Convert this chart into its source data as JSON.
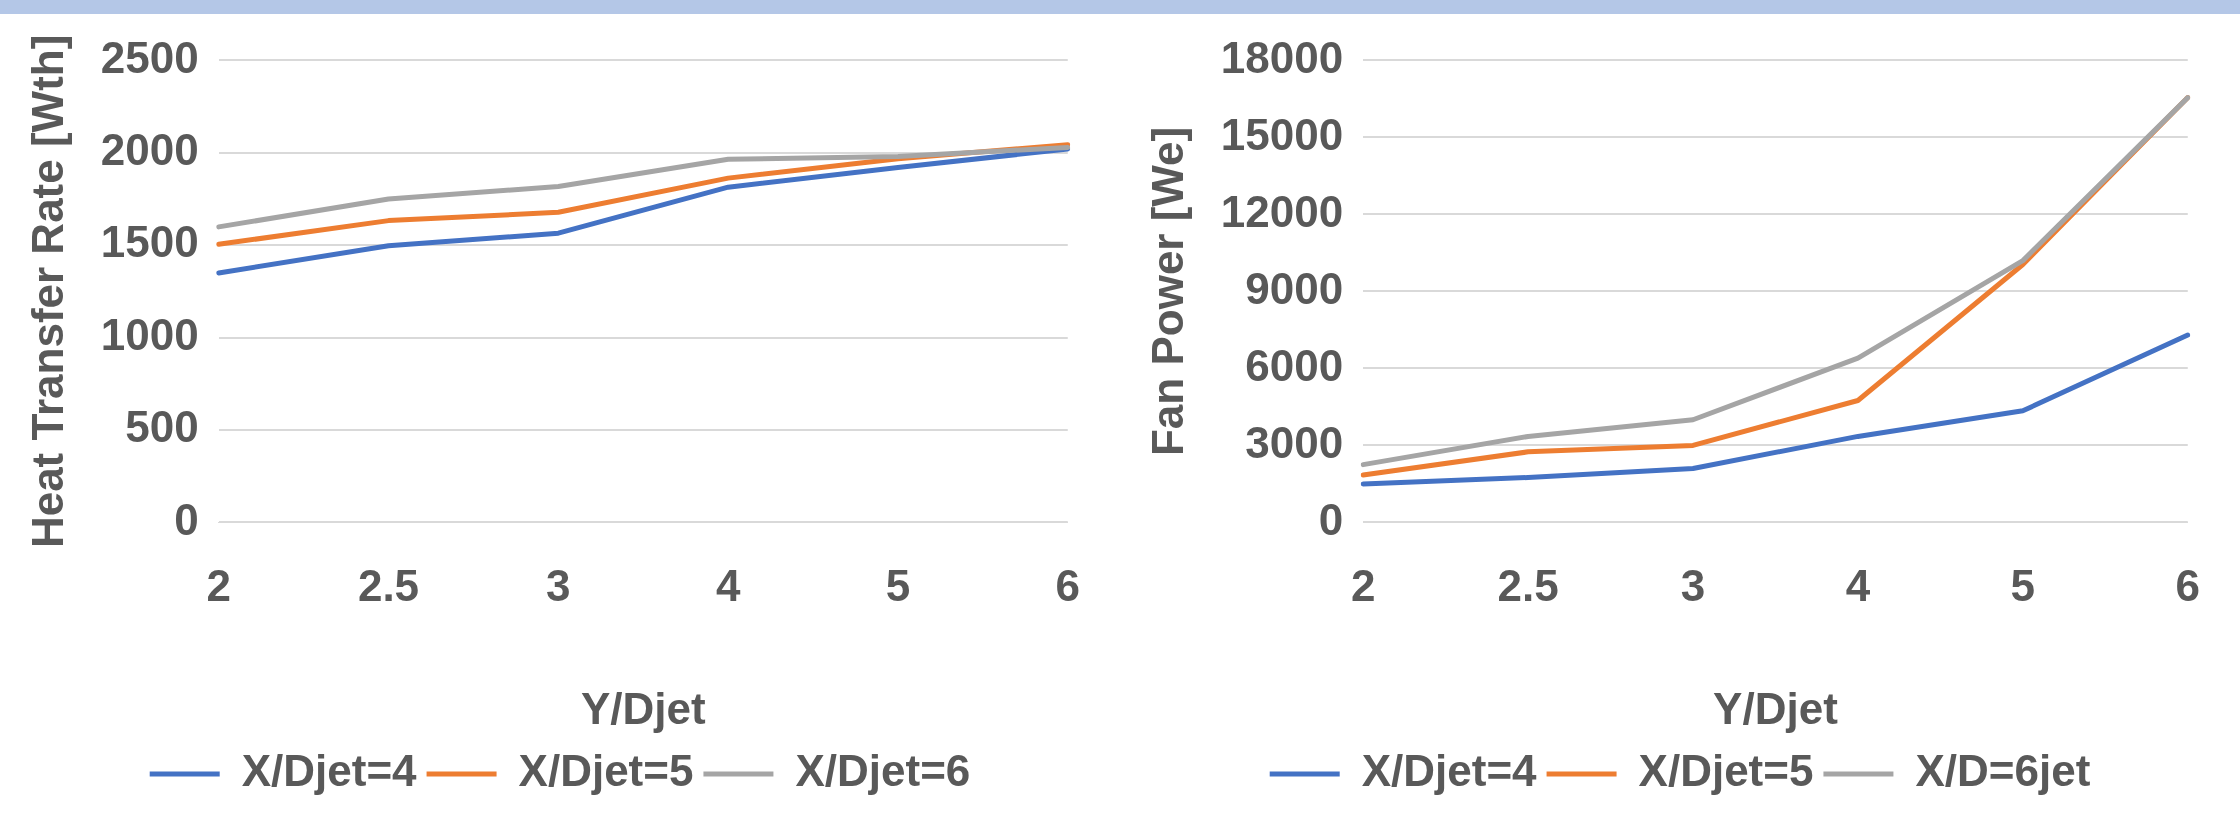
{
  "chart_data": [
    {
      "type": "line",
      "xlabel": "Y/Djet",
      "ylabel": "Heat Transfer Rate [Wth]",
      "categories": [
        "2",
        "2.5",
        "3",
        "4",
        "5",
        "6"
      ],
      "ylim": [
        0,
        2500
      ],
      "yticks": [
        0,
        500,
        1000,
        1500,
        2000,
        2500
      ],
      "grid": "y",
      "legend": "bottom",
      "marker": "none",
      "line_style": "solid",
      "series": [
        {
          "name": "X/Djet=4",
          "color": "#4472c4",
          "values": [
            1350,
            1497,
            1565,
            1814,
            1920,
            2021
          ]
        },
        {
          "name": "X/Djet=5",
          "color": "#ed7d31",
          "values": [
            1505,
            1633,
            1678,
            1863,
            1968,
            2044
          ]
        },
        {
          "name": "X/Djet=6",
          "color": "#a5a5a5",
          "values": [
            1599,
            1750,
            1818,
            1965,
            1980,
            2029
          ]
        }
      ]
    },
    {
      "type": "line",
      "xlabel": "Y/Djet",
      "ylabel": "Fan Power [We]",
      "categories": [
        "2",
        "2.5",
        "3",
        "4",
        "5",
        "6"
      ],
      "ylim": [
        0,
        18000
      ],
      "yticks": [
        0,
        3000,
        6000,
        9000,
        12000,
        15000,
        18000
      ],
      "grid": "y",
      "legend": "bottom",
      "marker": "none",
      "line_style": "solid",
      "series": [
        {
          "name": "X/Djet=4",
          "color": "#4472c4",
          "values": [
            1500,
            1750,
            2100,
            3350,
            4350,
            7300
          ]
        },
        {
          "name": "X/Djet=5",
          "color": "#ed7d31",
          "values": [
            1850,
            2750,
            3000,
            4750,
            10050,
            16550
          ]
        },
        {
          "name": "X/D=6jet",
          "color": "#a5a5a5",
          "values": [
            2250,
            3350,
            4000,
            6400,
            10200,
            16550
          ]
        }
      ]
    }
  ]
}
